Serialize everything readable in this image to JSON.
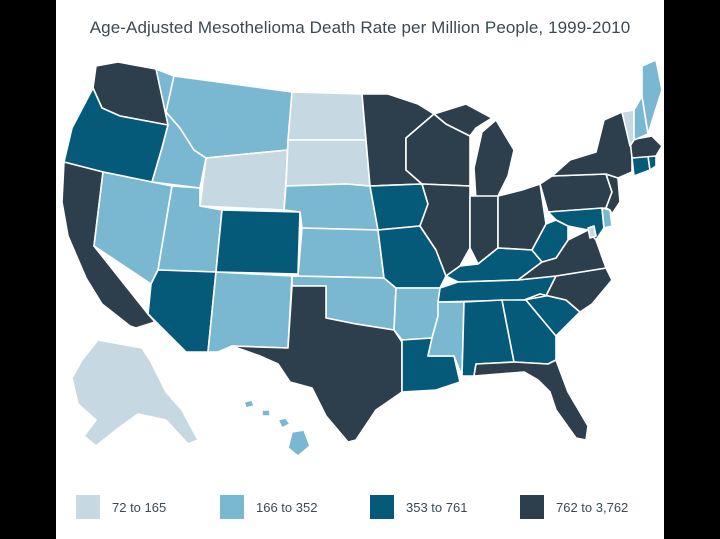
{
  "title": "Age-Adjusted Mesothelioma Death Rate per Million People, 1999-2010",
  "colors": {
    "c1": "#c6d9e3",
    "c2": "#7ab8d1",
    "c3": "#055a7a",
    "c4": "#2d3e4d",
    "border": "#ffffff"
  },
  "legend": [
    {
      "label": "72 to 165",
      "class": "c1"
    },
    {
      "label": "166 to 352",
      "class": "c2"
    },
    {
      "label": "353 to 761",
      "class": "c3"
    },
    {
      "label": "762 to 3,762",
      "class": "c4"
    }
  ],
  "states": {
    "WA": "c4",
    "OR": "c3",
    "CA": "c4",
    "ID": "c2",
    "NV": "c2",
    "MT": "c2",
    "WY": "c1",
    "UT": "c2",
    "AZ": "c3",
    "CO": "c3",
    "NM": "c2",
    "ND": "c1",
    "SD": "c1",
    "NE": "c2",
    "KS": "c2",
    "OK": "c2",
    "TX": "c4",
    "MN": "c4",
    "IA": "c3",
    "MO": "c3",
    "AR": "c2",
    "LA": "c3",
    "WI": "c4",
    "IL": "c4",
    "MI": "c4",
    "IN": "c4",
    "OH": "c4",
    "KY": "c3",
    "TN": "c3",
    "MS": "c2",
    "AL": "c3",
    "GA": "c3",
    "FL": "c4",
    "SC": "c3",
    "NC": "c4",
    "VA": "c4",
    "WV": "c3",
    "MD": "c3",
    "DE": "c2",
    "PA": "c4",
    "NY": "c4",
    "NJ": "c4",
    "CT": "c3",
    "RI": "c3",
    "MA": "c4",
    "VT": "c1",
    "NH": "c2",
    "ME": "c2",
    "DC": "c1",
    "AK": "c1",
    "HI": "c2"
  }
}
